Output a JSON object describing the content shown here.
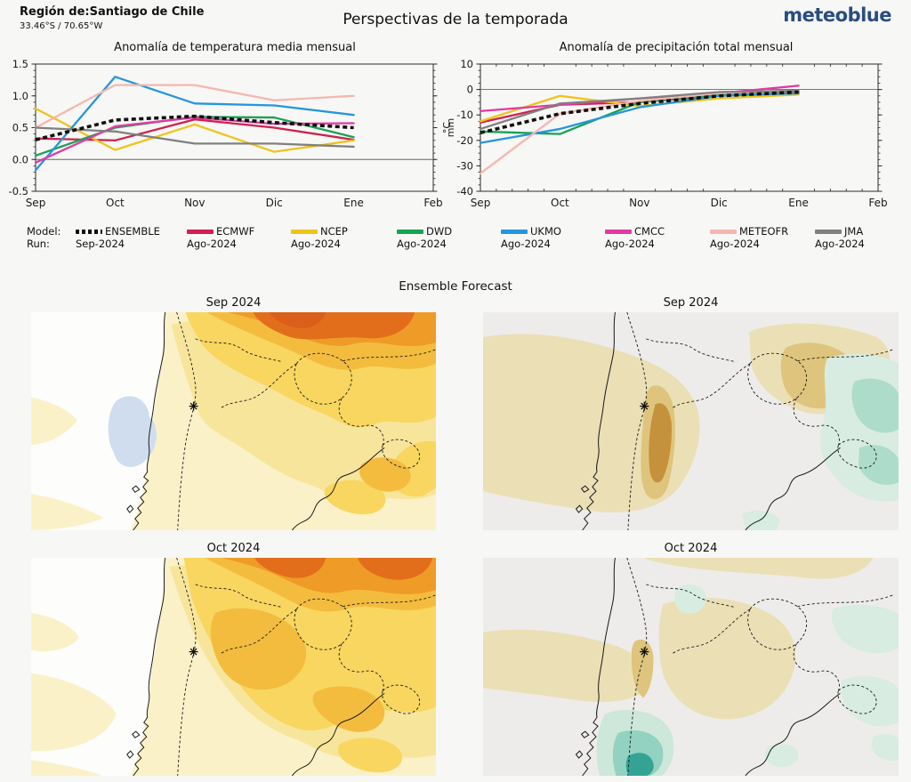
{
  "page": {
    "background": "#f7f7f5"
  },
  "header": {
    "region_label": "Región de:Santiago de Chile",
    "coordinates": "33.46°S / 70.65°W",
    "title": "Perspectivas de la temporada",
    "logo_text": "meteoblue",
    "logo_color": "#2a4d80"
  },
  "chart_data": [
    {
      "type": "line",
      "title": "Anomalía de temperatura media mensual",
      "x_tick_labels": [
        "Sep",
        "Oct",
        "Nov",
        "Dic",
        "Ene",
        "Feb"
      ],
      "ylim": [
        -0.5,
        1.5
      ],
      "ytick_values": [
        -0.5,
        0,
        0.5,
        1,
        1.5
      ],
      "yticks": [
        "-0.5",
        "0.0",
        "0.5",
        "1.0",
        "1.5"
      ],
      "y_minor_step": 0.1,
      "unit_label": "°C",
      "unit_side": "right",
      "zero_line": 0,
      "x_minor_ticks": false,
      "legend_position": "below",
      "grid": false,
      "series": [
        {
          "name": "ENSEMBLE",
          "color": "#111111",
          "dash": true,
          "values": [
            0.31,
            0.62,
            0.68,
            0.58,
            0.5
          ]
        },
        {
          "name": "ECMWF",
          "color": "#d02050",
          "dash": false,
          "values": [
            0.33,
            0.3,
            0.63,
            0.5,
            0.31
          ]
        },
        {
          "name": "NCEP",
          "color": "#eec41c",
          "dash": false,
          "values": [
            0.8,
            0.15,
            0.55,
            0.12,
            0.3
          ]
        },
        {
          "name": "DWD",
          "color": "#17a254",
          "dash": false,
          "values": [
            0.06,
            0.5,
            0.67,
            0.66,
            0.35
          ]
        },
        {
          "name": "UKMO",
          "color": "#2596dd",
          "dash": false,
          "values": [
            -0.17,
            1.3,
            0.88,
            0.85,
            0.7
          ]
        },
        {
          "name": "CMCC",
          "color": "#e23aa4",
          "dash": false,
          "values": [
            -0.05,
            0.52,
            0.66,
            0.56,
            0.57
          ]
        },
        {
          "name": "METEOFR",
          "color": "#f4b7af",
          "dash": false,
          "values": [
            0.5,
            1.17,
            1.17,
            0.93,
            1.0
          ]
        },
        {
          "name": "JMA",
          "color": "#808080",
          "dash": false,
          "values": [
            0.5,
            0.44,
            0.25,
            0.25,
            0.2
          ]
        }
      ]
    },
    {
      "type": "line",
      "title": "Anomalía de precipitación total mensual",
      "x_tick_labels": [
        "Sep",
        "Oct",
        "Nov",
        "Dic",
        "Ene",
        "Feb"
      ],
      "ylim": [
        -40,
        10
      ],
      "ytick_values": [
        -40,
        -30,
        -20,
        -10,
        0,
        10
      ],
      "yticks": [
        "-40",
        "-30",
        "-20",
        "-10",
        "0",
        "10"
      ],
      "y_minor_step": 2.5,
      "unit_label": "mm",
      "unit_side": "left",
      "zero_line": 0,
      "x_minor_ticks": true,
      "legend_position": "below",
      "grid": false,
      "series": [
        {
          "name": "ENSEMBLE",
          "color": "#111111",
          "dash": true,
          "values": [
            -17,
            -9.5,
            -5.5,
            -2.5,
            -1
          ]
        },
        {
          "name": "ECMWF",
          "color": "#d02050",
          "dash": false,
          "values": [
            -13,
            -6,
            -5,
            -2.5,
            -1
          ]
        },
        {
          "name": "NCEP",
          "color": "#eec41c",
          "dash": false,
          "values": [
            -12.5,
            -2.5,
            -6.5,
            -3.5,
            -2
          ]
        },
        {
          "name": "DWD",
          "color": "#17a254",
          "dash": false,
          "values": [
            -16.5,
            -17.5,
            -5,
            -2,
            -1.5
          ]
        },
        {
          "name": "UKMO",
          "color": "#2596dd",
          "dash": false,
          "values": [
            -21,
            -15.5,
            -7,
            -2.5,
            -1.5
          ]
        },
        {
          "name": "CMCC",
          "color": "#e23aa4",
          "dash": false,
          "values": [
            -8.5,
            -6,
            -3.5,
            -1.5,
            1.5
          ]
        },
        {
          "name": "METEOFR",
          "color": "#f4b7af",
          "dash": false,
          "values": [
            -33,
            -9.5,
            -4.5,
            -1.5,
            -0.5
          ]
        },
        {
          "name": "JMA",
          "color": "#808080",
          "dash": false,
          "values": [
            -15.5,
            -5.5,
            -3.5,
            -1,
            -0.5
          ]
        }
      ]
    }
  ],
  "legend": {
    "model_label": "Model:",
    "run_label": "Run:",
    "entries": [
      {
        "name": "ENSEMBLE",
        "run": "Sep-2024",
        "color": "#111111",
        "dash": true
      },
      {
        "name": "ECMWF",
        "run": "Ago-2024",
        "color": "#d02050",
        "dash": false
      },
      {
        "name": "NCEP",
        "run": "Ago-2024",
        "color": "#eec41c",
        "dash": false
      },
      {
        "name": "DWD",
        "run": "Ago-2024",
        "color": "#17a254",
        "dash": false
      },
      {
        "name": "UKMO",
        "run": "Ago-2024",
        "color": "#2596dd",
        "dash": false
      },
      {
        "name": "CMCC",
        "run": "Ago-2024",
        "color": "#e23aa4",
        "dash": false
      },
      {
        "name": "METEOFR",
        "run": "Ago-2024",
        "color": "#f4b7af",
        "dash": false
      },
      {
        "name": "JMA",
        "run": "Ago-2024",
        "color": "#808080",
        "dash": false
      }
    ]
  },
  "ensemble": {
    "section_title": "Ensemble Forecast",
    "maps": [
      {
        "title": "Sep 2024",
        "kind": "temperature-anomaly-map"
      },
      {
        "title": "Sep 2024",
        "kind": "precipitation-anomaly-map"
      },
      {
        "title": "Oct 2024",
        "kind": "temperature-anomaly-map"
      },
      {
        "title": "Oct 2024",
        "kind": "precipitation-anomaly-map"
      }
    ],
    "temperature_palette": [
      "#fbf1c8",
      "#f8e59c",
      "#f8d660",
      "#f4bc3e",
      "#ef9b28",
      "#e26e1c",
      "#da5f1a",
      "#cfddee"
    ],
    "precipitation_palette": [
      "#ebdfb6",
      "#dfc47e",
      "#c6913c",
      "#d8ece1",
      "#aedcca",
      "#93d2c0",
      "#35a394"
    ]
  }
}
